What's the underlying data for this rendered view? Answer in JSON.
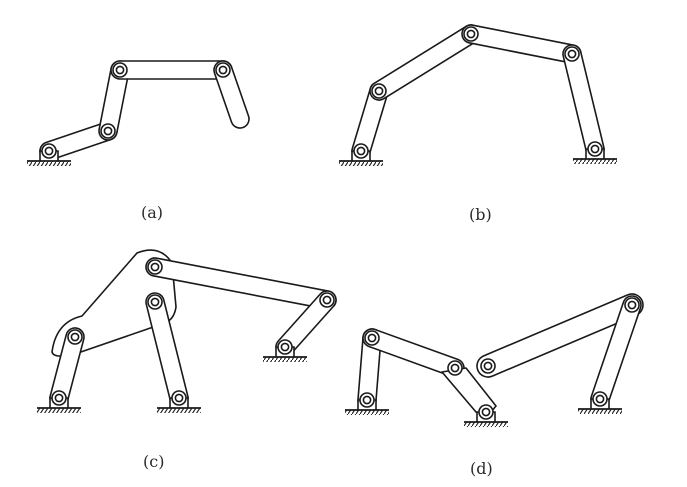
{
  "panels": [
    {
      "id": "a",
      "caption": "(a)"
    },
    {
      "id": "b",
      "caption": "(b)"
    },
    {
      "id": "c",
      "caption": "(c)"
    },
    {
      "id": "d",
      "caption": "(d)"
    }
  ],
  "colors": {
    "stroke": "#1a1a1a",
    "background": "#ffffff"
  }
}
